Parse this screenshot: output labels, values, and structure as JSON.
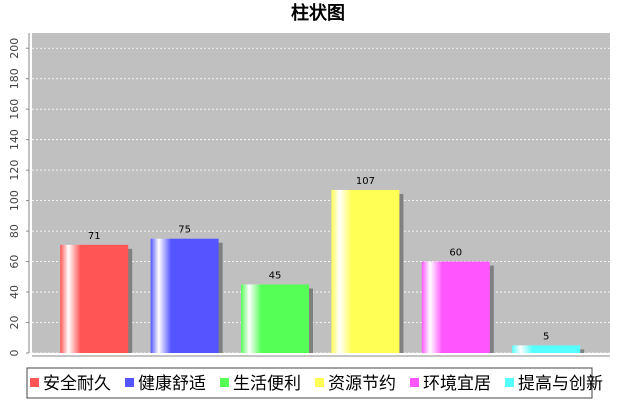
{
  "chart_data": {
    "type": "bar",
    "title": "柱状图",
    "categories": [
      "安全耐久",
      "健康舒适",
      "生活便利",
      "资源节约",
      "环境宜居",
      "提高与创新"
    ],
    "values": [
      71,
      75,
      45,
      107,
      60,
      5
    ],
    "colors": [
      "#ff5555",
      "#5555ff",
      "#55ff55",
      "#ffff55",
      "#ff55ff",
      "#55ffff"
    ],
    "ylim": [
      0,
      210
    ],
    "yticks": [
      0,
      20,
      40,
      60,
      80,
      100,
      120,
      140,
      160,
      180,
      200
    ],
    "grid": true
  }
}
